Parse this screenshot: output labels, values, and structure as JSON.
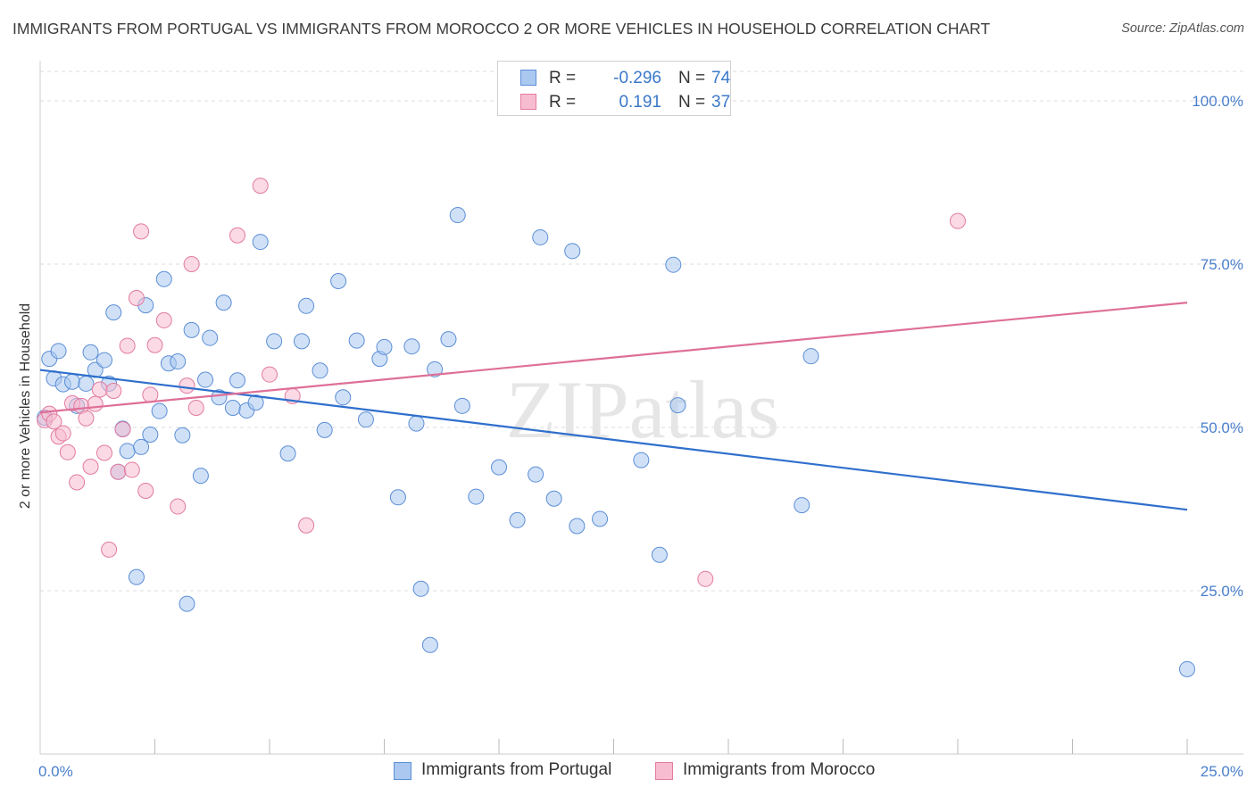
{
  "title": "IMMIGRANTS FROM PORTUGAL VS IMMIGRANTS FROM MOROCCO 2 OR MORE VEHICLES IN HOUSEHOLD CORRELATION CHART",
  "source": "Source: ZipAtlas.com",
  "watermark": "ZIPatlas",
  "legend": {
    "r_label": "R =",
    "n_label": "N =",
    "rows": [
      {
        "r": "-0.296",
        "n": "74"
      },
      {
        "r": "0.191",
        "n": "37"
      }
    ]
  },
  "colors": {
    "portugal_fill": "#aac8f0",
    "portugal_stroke": "#5b8ed6",
    "portugal_line": "#2f6fcc",
    "morocco_fill": "#f7bcd0",
    "morocco_stroke": "#e27ba0",
    "morocco_line": "#de6f98",
    "tick_label": "#4a7fcc",
    "grid": "#dddddd"
  },
  "chart_data": {
    "type": "scatter",
    "title": "IMMIGRANTS FROM PORTUGAL VS IMMIGRANTS FROM MOROCCO 2 OR MORE VEHICLES IN HOUSEHOLD CORRELATION CHART",
    "xlabel": "",
    "ylabel": "2 or more Vehicles in Household",
    "xlim": [
      0,
      25
    ],
    "ylim": [
      0,
      104.5
    ],
    "x_tick_labels": [
      "0.0%",
      "25.0%"
    ],
    "y_ticks": [
      25,
      50,
      75,
      100
    ],
    "y_tick_labels": [
      "25.0%",
      "50.0%",
      "75.0%",
      "100.0%"
    ],
    "grid": "horizontal dashed",
    "legend_position": "top-center",
    "series": [
      {
        "name": "Immigrants from Portugal",
        "r": -0.296,
        "n": 74,
        "trend": {
          "x": [
            0,
            25
          ],
          "y": [
            58.8,
            37.4
          ]
        },
        "points": [
          [
            0.1,
            51.5
          ],
          [
            0.2,
            60.5
          ],
          [
            0.3,
            57.5
          ],
          [
            0.4,
            61.7
          ],
          [
            0.5,
            56.6
          ],
          [
            0.7,
            57.0
          ],
          [
            0.8,
            53.3
          ],
          [
            1.0,
            56.7
          ],
          [
            1.1,
            61.5
          ],
          [
            1.2,
            58.8
          ],
          [
            1.4,
            60.3
          ],
          [
            1.5,
            56.7
          ],
          [
            1.6,
            67.6
          ],
          [
            1.7,
            43.2
          ],
          [
            1.8,
            49.8
          ],
          [
            1.9,
            46.4
          ],
          [
            2.1,
            27.1
          ],
          [
            2.2,
            47.0
          ],
          [
            2.3,
            68.7
          ],
          [
            2.4,
            48.9
          ],
          [
            2.6,
            52.5
          ],
          [
            2.7,
            72.7
          ],
          [
            2.8,
            59.8
          ],
          [
            3.0,
            60.1
          ],
          [
            3.1,
            48.8
          ],
          [
            3.2,
            23.0
          ],
          [
            3.3,
            64.9
          ],
          [
            3.5,
            42.6
          ],
          [
            3.6,
            57.3
          ],
          [
            3.7,
            63.7
          ],
          [
            3.9,
            54.6
          ],
          [
            4.0,
            69.1
          ],
          [
            4.2,
            53.0
          ],
          [
            4.3,
            57.2
          ],
          [
            4.5,
            52.6
          ],
          [
            4.7,
            53.8
          ],
          [
            4.8,
            78.4
          ],
          [
            5.1,
            63.2
          ],
          [
            5.4,
            46.0
          ],
          [
            5.7,
            63.2
          ],
          [
            5.8,
            68.6
          ],
          [
            6.1,
            58.7
          ],
          [
            6.2,
            49.6
          ],
          [
            6.5,
            72.4
          ],
          [
            6.6,
            54.6
          ],
          [
            6.9,
            63.3
          ],
          [
            7.1,
            51.2
          ],
          [
            7.4,
            60.5
          ],
          [
            7.5,
            62.3
          ],
          [
            7.8,
            39.3
          ],
          [
            8.1,
            62.4
          ],
          [
            8.2,
            50.6
          ],
          [
            8.3,
            25.3
          ],
          [
            8.5,
            16.7
          ],
          [
            8.6,
            58.9
          ],
          [
            8.9,
            63.5
          ],
          [
            9.1,
            82.5
          ],
          [
            9.2,
            53.3
          ],
          [
            9.5,
            39.4
          ],
          [
            10.0,
            43.9
          ],
          [
            10.4,
            35.8
          ],
          [
            10.8,
            42.8
          ],
          [
            10.9,
            79.1
          ],
          [
            11.2,
            39.1
          ],
          [
            11.6,
            77.0
          ],
          [
            11.7,
            34.9
          ],
          [
            12.2,
            36.0
          ],
          [
            13.1,
            45.0
          ],
          [
            13.5,
            30.5
          ],
          [
            13.8,
            74.9
          ],
          [
            13.9,
            53.4
          ],
          [
            16.6,
            38.1
          ],
          [
            16.8,
            60.9
          ],
          [
            25.0,
            13.0
          ]
        ]
      },
      {
        "name": "Immigrants from Morocco",
        "r": 0.191,
        "n": 37,
        "trend": {
          "x": [
            0,
            25
          ],
          "y": [
            52.3,
            69.1
          ]
        },
        "points": [
          [
            0.1,
            51.1
          ],
          [
            0.2,
            52.1
          ],
          [
            0.3,
            50.9
          ],
          [
            0.4,
            48.6
          ],
          [
            0.5,
            49.1
          ],
          [
            0.6,
            46.2
          ],
          [
            0.7,
            53.7
          ],
          [
            0.8,
            41.6
          ],
          [
            0.9,
            53.3
          ],
          [
            1.0,
            51.4
          ],
          [
            1.1,
            44.0
          ],
          [
            1.2,
            53.6
          ],
          [
            1.3,
            55.8
          ],
          [
            1.4,
            46.1
          ],
          [
            1.5,
            31.3
          ],
          [
            1.6,
            55.6
          ],
          [
            1.7,
            43.2
          ],
          [
            1.8,
            49.7
          ],
          [
            1.9,
            62.5
          ],
          [
            2.0,
            43.5
          ],
          [
            2.1,
            69.8
          ],
          [
            2.2,
            80.0
          ],
          [
            2.3,
            40.3
          ],
          [
            2.4,
            55.0
          ],
          [
            2.5,
            62.6
          ],
          [
            2.7,
            66.4
          ],
          [
            3.0,
            37.9
          ],
          [
            3.2,
            56.4
          ],
          [
            3.3,
            75.0
          ],
          [
            3.4,
            53.0
          ],
          [
            4.3,
            79.4
          ],
          [
            4.8,
            87.0
          ],
          [
            5.0,
            58.1
          ],
          [
            5.5,
            54.8
          ],
          [
            5.8,
            35.0
          ],
          [
            14.5,
            26.8
          ],
          [
            20.0,
            81.6
          ]
        ]
      }
    ]
  },
  "bottom_legend": [
    "Immigrants from Portugal",
    "Immigrants from Morocco"
  ]
}
